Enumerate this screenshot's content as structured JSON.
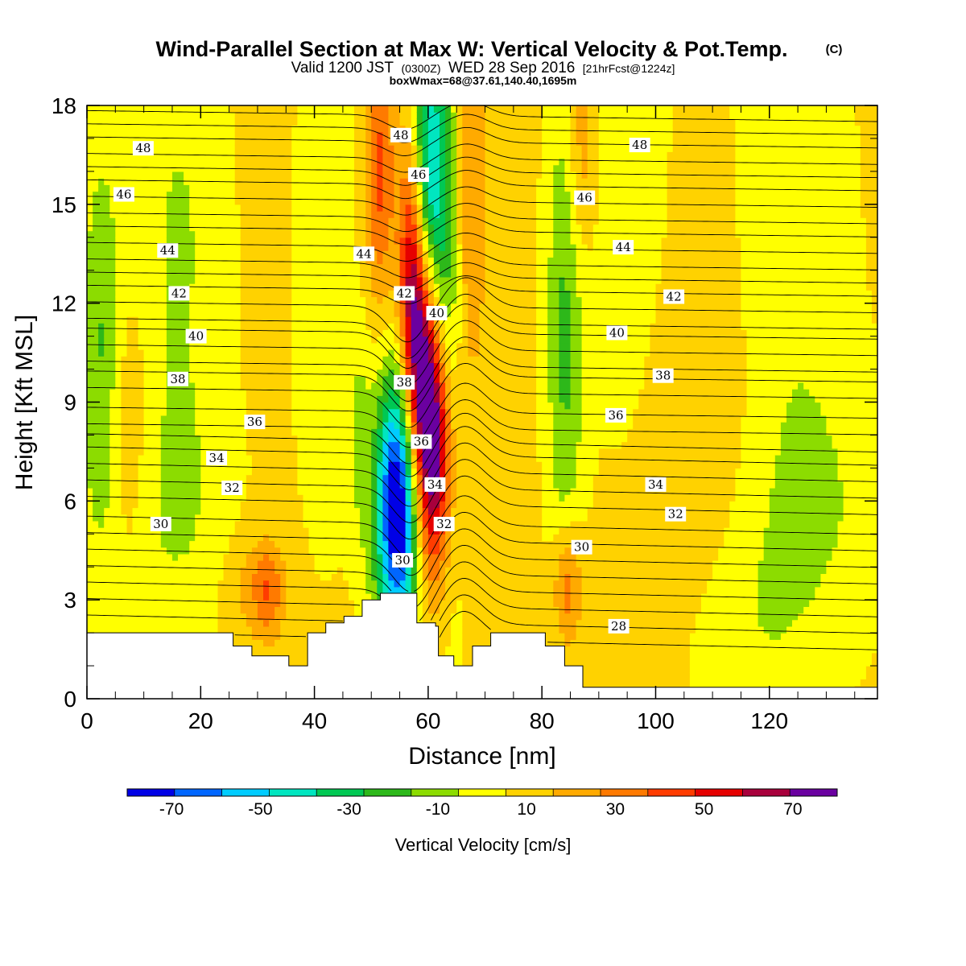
{
  "title": {
    "main": "Wind-Parallel Section at Max W: Vertical Velocity & Pot.Temp.",
    "mark": "(C)",
    "valid_prefix": "Valid 1200 JST",
    "valid_z": "(0300Z)",
    "valid_date": "WED 28 Sep 2016",
    "fcst": "[21hrFcst@1224z]",
    "boxmax": "boxWmax=68@37.61,140.40,1695m"
  },
  "chart_data": {
    "type": "heatmap",
    "xlabel": "Distance [nm]",
    "ylabel": "Height [Kft MSL]",
    "xlim": [
      0,
      139
    ],
    "ylim": [
      0,
      18
    ],
    "x_ticks": [
      0,
      20,
      40,
      60,
      80,
      100,
      120
    ],
    "y_ticks": [
      0,
      3,
      6,
      9,
      12,
      15,
      18
    ],
    "grid": false,
    "colorbar": {
      "title": "Vertical Velocity [cm/s]",
      "placement": "bottom",
      "bounds": [
        -80,
        80
      ],
      "step": 10,
      "tick_labels": [
        "-70",
        "-50",
        "-30",
        "-10",
        "10",
        "30",
        "50",
        "70"
      ],
      "tick_values": [
        -70,
        -50,
        -30,
        -10,
        10,
        30,
        50,
        70
      ],
      "colors": [
        "#0000e6",
        "#0066ff",
        "#00ccff",
        "#00e6c0",
        "#00c853",
        "#2db81a",
        "#8cdc00",
        "#ffff00",
        "#ffd200",
        "#ffaa00",
        "#ff7a00",
        "#ff3c00",
        "#e60000",
        "#a8003c",
        "#6a00a0"
      ]
    },
    "terrain_kft": [
      [
        0,
        2
      ],
      [
        25.7,
        2
      ],
      [
        25.7,
        1.6
      ],
      [
        29,
        1.6
      ],
      [
        29,
        1.3
      ],
      [
        35.5,
        1.3
      ],
      [
        35.5,
        1
      ],
      [
        38.8,
        1
      ],
      [
        38.8,
        2
      ],
      [
        42,
        2
      ],
      [
        42,
        2.3
      ],
      [
        45.2,
        2.3
      ],
      [
        45.2,
        2.5
      ],
      [
        48.4,
        2.5
      ],
      [
        48.4,
        3
      ],
      [
        51.6,
        3
      ],
      [
        51.6,
        3.2
      ],
      [
        58,
        3.2
      ],
      [
        58,
        2.3
      ],
      [
        61.3,
        2.3
      ],
      [
        61.3,
        2.2
      ],
      [
        61.8,
        2.2
      ],
      [
        61.8,
        1.3
      ],
      [
        64.5,
        1.3
      ],
      [
        64.5,
        1
      ],
      [
        67.8,
        1
      ],
      [
        67.8,
        1.6
      ],
      [
        71,
        1.6
      ],
      [
        71,
        2
      ],
      [
        80.6,
        2
      ],
      [
        80.6,
        1.6
      ],
      [
        84,
        1.6
      ],
      [
        84,
        1
      ],
      [
        87.2,
        1
      ],
      [
        87.2,
        0.35
      ],
      [
        139,
        0.35
      ]
    ],
    "w_field": {
      "background": 3,
      "features": [
        {
          "x": 2.5,
          "z": 10.5,
          "sx": 2.5,
          "sz": 4.5,
          "amp": -24
        },
        {
          "x": 28,
          "z": 3.4,
          "sx": 3,
          "sz": 1.2,
          "amp": 10
        },
        {
          "x": 32,
          "z": 3.3,
          "sx": 2,
          "sz": 1,
          "amp": 25
        },
        {
          "x": 54.6,
          "z": 5.5,
          "sx": 2.8,
          "sz": 2.8,
          "amp": -78,
          "tilt": 0.28
        },
        {
          "x": 55.5,
          "z": 7.8,
          "sx": 2.8,
          "sz": 2.8,
          "amp": -20,
          "tilt": 0.28
        },
        {
          "x": 61,
          "z": 7.5,
          "sx": 2.5,
          "sz": 2.8,
          "amp": 75,
          "tilt": 0.35
        },
        {
          "x": 58.4,
          "z": 10.5,
          "sx": 2.2,
          "sz": 2.8,
          "amp": 52,
          "tilt": 0.35
        },
        {
          "x": 57,
          "z": 13.5,
          "sx": 1.6,
          "sz": 3,
          "amp": 35,
          "tilt": 0.35
        },
        {
          "x": 51.5,
          "z": 16,
          "sx": 1.8,
          "sz": 3,
          "amp": 30
        },
        {
          "x": 63.5,
          "z": 11.5,
          "sx": 2.2,
          "sz": 6,
          "amp": -30,
          "tilt": 0.3
        },
        {
          "x": 60,
          "z": 16,
          "sx": 2.2,
          "sz": 3,
          "amp": -50
        },
        {
          "x": 67,
          "z": 15,
          "sx": 2,
          "sz": 4,
          "amp": 22
        },
        {
          "x": 84,
          "z": 11,
          "sx": 2.3,
          "sz": 6,
          "amp": -24,
          "tilt": 0.18
        },
        {
          "x": 87,
          "z": 16.8,
          "sx": 2,
          "sz": 2.5,
          "amp": 20
        },
        {
          "x": 84.5,
          "z": 3.4,
          "sx": 1.8,
          "sz": 1.4,
          "amp": 30
        },
        {
          "x": 48,
          "z": 8,
          "sx": 1.5,
          "sz": 2.5,
          "amp": -12
        },
        {
          "x": 115,
          "z": 2,
          "sx": 10,
          "sz": 3,
          "amp": -12
        },
        {
          "x": 130,
          "z": 6,
          "sx": 10,
          "sz": 3,
          "amp": -10
        },
        {
          "x": 16,
          "z": 14,
          "sx": 6,
          "sz": 5,
          "amp": -14
        },
        {
          "x": 108,
          "z": 8,
          "sx": 7,
          "sz": 6,
          "amp": 10
        },
        {
          "x": 123,
          "z": 14,
          "sx": 8,
          "sz": 6,
          "amp": -12
        },
        {
          "x": 95,
          "z": 15,
          "sx": 6,
          "sz": 5,
          "amp": -12
        },
        {
          "x": 42,
          "z": 13,
          "sx": 4,
          "sz": 6,
          "amp": -10
        },
        {
          "x": 15,
          "z": 5.5,
          "sx": 8,
          "sz": 3,
          "amp": -12
        },
        {
          "x": 7,
          "z": 8,
          "sx": 3,
          "sz": 3,
          "amp": 12
        }
      ]
    },
    "theta_contours": [
      {
        "label": "28",
        "start_kft": 1.8,
        "lx": 93.5,
        "lz": 2.2
      },
      {
        "label": "30",
        "start_kft": 4.3,
        "lx": 13,
        "lz": 5.3
      },
      {
        "label": "30",
        "start_kft": 4.3,
        "lx": 55.5,
        "lz": 4.2
      },
      {
        "label": "30",
        "start_kft": 4.3,
        "lx": 87,
        "lz": 4.6
      },
      {
        "label": "32",
        "start_kft": 5.9,
        "lx": 25.5,
        "lz": 6.4
      },
      {
        "label": "32",
        "start_kft": 5.9,
        "lx": 62.8,
        "lz": 5.3
      },
      {
        "label": "32",
        "start_kft": 5.9,
        "lx": 103.5,
        "lz": 5.6
      },
      {
        "label": "34",
        "start_kft": 6.9,
        "lx": 22.8,
        "lz": 7.3
      },
      {
        "label": "34",
        "start_kft": 6.9,
        "lx": 61.2,
        "lz": 6.5
      },
      {
        "label": "34",
        "start_kft": 6.9,
        "lx": 100,
        "lz": 6.5
      },
      {
        "label": "36",
        "start_kft": 8.2,
        "lx": 29.5,
        "lz": 8.4
      },
      {
        "label": "36",
        "start_kft": 8.2,
        "lx": 58.8,
        "lz": 7.8
      },
      {
        "label": "36",
        "start_kft": 8.2,
        "lx": 93,
        "lz": 8.6
      },
      {
        "label": "38",
        "start_kft": 9.3,
        "lx": 16,
        "lz": 9.7
      },
      {
        "label": "38",
        "start_kft": 9.3,
        "lx": 55.8,
        "lz": 9.6
      },
      {
        "label": "38",
        "start_kft": 9.3,
        "lx": 101.3,
        "lz": 9.8
      },
      {
        "label": "40",
        "start_kft": 10.6,
        "lx": 19.2,
        "lz": 11
      },
      {
        "label": "40",
        "start_kft": 10.6,
        "lx": 61.5,
        "lz": 11.7
      },
      {
        "label": "40",
        "start_kft": 10.6,
        "lx": 93.2,
        "lz": 11.1
      },
      {
        "label": "42",
        "start_kft": 11.9,
        "lx": 16.2,
        "lz": 12.3
      },
      {
        "label": "42",
        "start_kft": 11.9,
        "lx": 55.8,
        "lz": 12.3
      },
      {
        "label": "42",
        "start_kft": 11.9,
        "lx": 103.2,
        "lz": 12.2
      },
      {
        "label": "44",
        "start_kft": 13.2,
        "lx": 14.2,
        "lz": 13.6
      },
      {
        "label": "44",
        "start_kft": 13.2,
        "lx": 48.7,
        "lz": 13.5
      },
      {
        "label": "44",
        "start_kft": 13.2,
        "lx": 94.3,
        "lz": 13.7
      },
      {
        "label": "46",
        "start_kft": 15.1,
        "lx": 6.5,
        "lz": 15.3
      },
      {
        "label": "46",
        "start_kft": 15.1,
        "lx": 58.3,
        "lz": 15.9
      },
      {
        "label": "46",
        "start_kft": 15.1,
        "lx": 87.5,
        "lz": 15.2
      },
      {
        "label": "48",
        "start_kft": 16.4,
        "lx": 9.9,
        "lz": 16.7
      },
      {
        "label": "48",
        "start_kft": 16.4,
        "lx": 55.2,
        "lz": 17.1
      },
      {
        "label": "48",
        "start_kft": 16.4,
        "lx": 97.2,
        "lz": 16.8
      }
    ],
    "theta_extra_levels_kft": [
      2.3,
      2.8,
      3.3,
      3.8,
      4.8,
      5.3,
      6.4,
      7.4,
      7.8,
      8.7,
      9.8,
      10.1,
      11.1,
      11.4,
      12.4,
      12.8,
      13.7,
      14.2,
      14.6,
      15.6,
      16.0,
      16.9,
      17.3,
      17.7
    ]
  }
}
